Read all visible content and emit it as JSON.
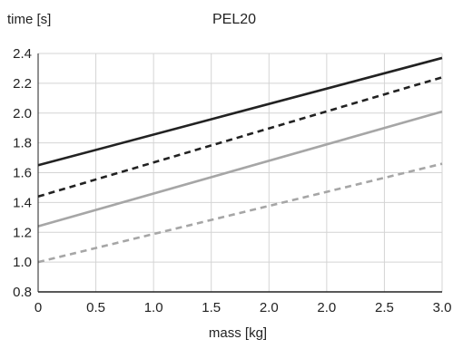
{
  "chart_data": {
    "type": "line",
    "title": "PEL20",
    "xlabel": "mass [kg]",
    "ylabel": "time [s]",
    "x": [
      0,
      3.0
    ],
    "xticks": [
      "0",
      "0.5",
      "1.0",
      "1.5",
      "2.0",
      "2.0",
      "2.5",
      "3.0"
    ],
    "xlim": [
      0,
      3.0
    ],
    "yticks": [
      "0.8",
      "1.0",
      "1.2",
      "1.4",
      "1.6",
      "1.8",
      "2.0",
      "2.2",
      "2.4"
    ],
    "ylim": [
      0.8,
      2.4
    ],
    "grid": true,
    "series": [
      {
        "values": [
          1.65,
          2.37
        ],
        "color": "#222222",
        "dash": "solid"
      },
      {
        "values": [
          1.44,
          2.24
        ],
        "color": "#222222",
        "dash": "dashed"
      },
      {
        "values": [
          1.24,
          2.01
        ],
        "color": "#a6a6a6",
        "dash": "solid"
      },
      {
        "values": [
          1.0,
          1.66
        ],
        "color": "#a6a6a6",
        "dash": "dashed"
      }
    ]
  }
}
